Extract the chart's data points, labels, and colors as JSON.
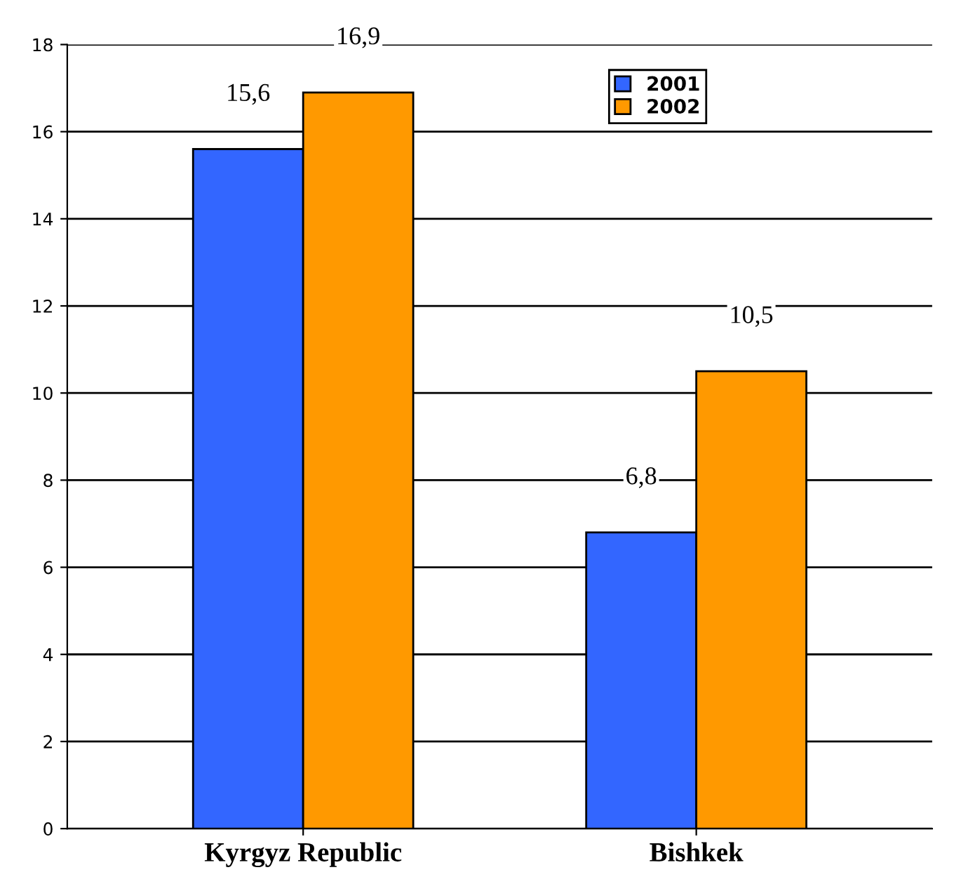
{
  "chart_data": {
    "type": "bar",
    "categories": [
      "Kyrgyz Republic",
      "Bishkek"
    ],
    "series": [
      {
        "name": "2001",
        "color": "#3366ff",
        "values": [
          15.6,
          6.8
        ],
        "value_labels": [
          "15,6",
          "6,8"
        ]
      },
      {
        "name": "2002",
        "color": "#ff9900",
        "values": [
          16.9,
          10.5
        ],
        "value_labels": [
          "16,9",
          "10,5"
        ]
      }
    ],
    "ylim": [
      0,
      18
    ],
    "yticks": [
      0,
      2,
      4,
      6,
      8,
      10,
      12,
      14,
      16,
      18
    ],
    "grid": "y",
    "legend": "top right"
  }
}
